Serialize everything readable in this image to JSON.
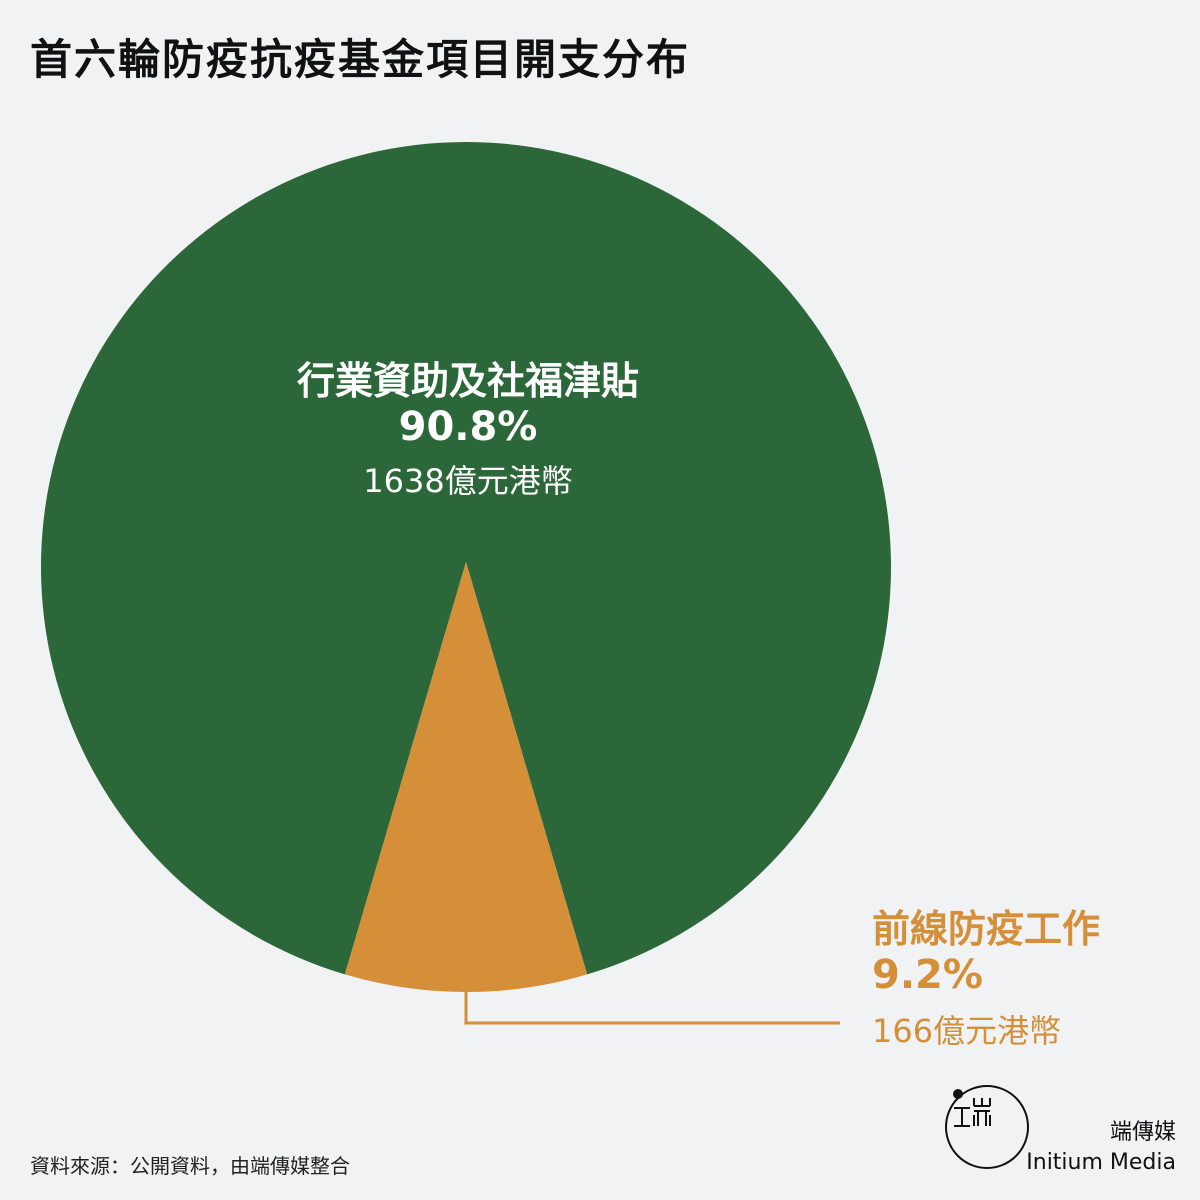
{
  "title": "首六輪防疫抗疫基金項目開支分布",
  "chart_data": {
    "type": "pie",
    "unit": "億元港幣",
    "slices": [
      {
        "name": "行業資助及社福津貼",
        "percent": 90.8,
        "value": 1638,
        "amount_label": "1638億元港幣",
        "percent_label": "90.8%",
        "color": "#2c673a"
      },
      {
        "name": "前線防疫工作",
        "percent": 9.2,
        "value": 166,
        "amount_label": "166億元港幣",
        "percent_label": "9.2%",
        "color": "#d48f38"
      }
    ]
  },
  "source": "資料來源：公開資料，由端傳媒整合",
  "brand": {
    "cn": "端傳媒",
    "en": "Initium Media"
  },
  "colors": {
    "background": "#f1f2f4",
    "main": "#2c673a",
    "accent": "#d48f38"
  }
}
